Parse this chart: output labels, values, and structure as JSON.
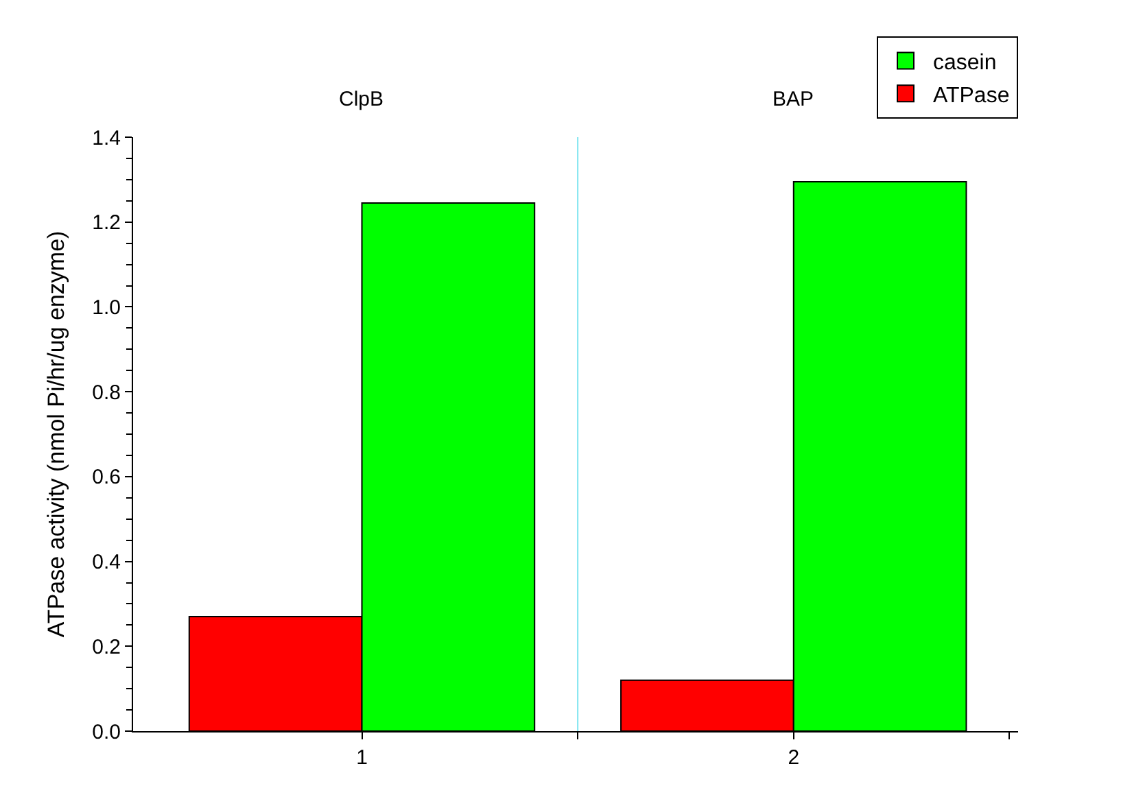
{
  "chart_data": {
    "type": "bar",
    "ylabel": "ATPase activity (nmol Pi/hr/ug enzyme)",
    "x": [
      1,
      2
    ],
    "series": [
      {
        "name": "ATPase",
        "color": "#ff0000",
        "values": [
          0.27,
          0.12
        ]
      },
      {
        "name": "casein",
        "color": "#00ff00",
        "values": [
          1.245,
          1.295
        ]
      }
    ],
    "annotations": [
      "ClpB",
      "BAP"
    ],
    "ref_lines": [
      {
        "axis": "x",
        "value": 1.5,
        "color": "#7fe5f0"
      }
    ],
    "xlim": [
      0.47,
      2.52
    ],
    "xticks": [
      1,
      {
        "value": 1.5,
        "label": null
      },
      2,
      {
        "value": 2.5,
        "label": null
      }
    ],
    "ylim": [
      0,
      1.4
    ],
    "yticks": [
      {
        "value": 0,
        "label": "0.0"
      },
      0.2,
      0.4,
      0.6,
      0.8,
      {
        "value": 1,
        "label": "1.0"
      },
      1.2,
      1.4
    ],
    "legend": "top right"
  }
}
